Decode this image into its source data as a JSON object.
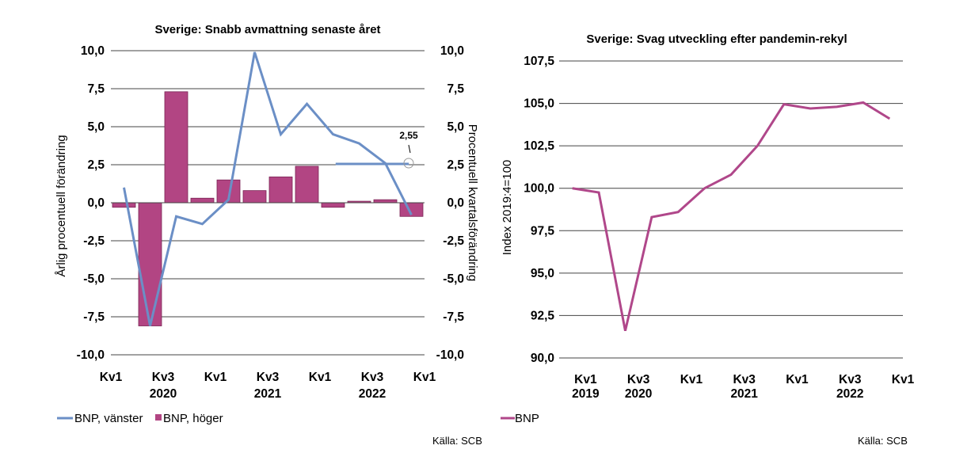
{
  "colors": {
    "line": "#6b8fc6",
    "bar": "#b24583",
    "bar_edge": "#7a2455",
    "grid": "#444444",
    "bnp_line": "#b0478a"
  },
  "chart_data": [
    {
      "type": "bar",
      "title": "Sverige: Snabb avmattning senaste året",
      "ylabel": "Årlig procentuell förändring",
      "ylabel_right": "Procentuell kvartalsförändring",
      "ylim": [
        -10,
        10
      ],
      "yticks": [
        "10,0",
        "7,5",
        "5,0",
        "2,5",
        "0,0",
        "-2,5",
        "-5,0",
        "-7,5",
        "-10,0"
      ],
      "xtick_labels": [
        {
          "q": "Kv1",
          "year": ""
        },
        {
          "q": "Kv3",
          "year": "2020"
        },
        {
          "q": "Kv1",
          "year": ""
        },
        {
          "q": "Kv3",
          "year": "2021"
        },
        {
          "q": "Kv1",
          "year": ""
        },
        {
          "q": "Kv3",
          "year": "2022"
        },
        {
          "q": "Kv1",
          "year": ""
        }
      ],
      "series": [
        {
          "name": "BNP, vänster",
          "kind": "line",
          "axis": "left",
          "values": [
            1.0,
            -8.1,
            -0.9,
            -1.4,
            0.2,
            9.9,
            4.5,
            6.5,
            4.5,
            3.9,
            2.6,
            -0.8
          ]
        },
        {
          "name": "BNP, höger",
          "kind": "bar",
          "axis": "right",
          "values": [
            -0.3,
            -8.1,
            7.3,
            0.3,
            1.5,
            0.8,
            1.7,
            2.4,
            -0.3,
            0.1,
            0.2,
            -0.9
          ]
        },
        {
          "name": "",
          "kind": "hline",
          "x_start": 8.6,
          "x_end": 11.4,
          "value": 2.55
        }
      ],
      "annotation": "2,55",
      "legend": [
        "BNP, vänster",
        "BNP, höger"
      ],
      "legend_position": "bottom-left",
      "source": "Källa: SCB"
    },
    {
      "type": "line",
      "title": "Sverige: Svag utveckling efter pandemin-rekyl",
      "ylabel": "Index 2019:4=100",
      "ylim": [
        90,
        107.5
      ],
      "yticks": [
        "107,5",
        "105,0",
        "102,5",
        "100,0",
        "97,5",
        "95,0",
        "92,5",
        "90,0"
      ],
      "xtick_labels": [
        {
          "q": "Kv1",
          "year": "2019"
        },
        {
          "q": "Kv3",
          "year": "2020"
        },
        {
          "q": "Kv1",
          "year": ""
        },
        {
          "q": "Kv3",
          "year": "2021"
        },
        {
          "q": "Kv1",
          "year": ""
        },
        {
          "q": "Kv3",
          "year": "2022"
        },
        {
          "q": "Kv1",
          "year": ""
        }
      ],
      "series": [
        {
          "name": "BNP",
          "values": [
            100.0,
            99.75,
            91.6,
            98.3,
            98.6,
            100.0,
            100.8,
            102.5,
            104.95,
            104.7,
            104.8,
            105.05,
            104.1
          ]
        }
      ],
      "legend": [
        "BNP"
      ],
      "legend_position": "bottom-left",
      "source": "Källa: SCB"
    }
  ]
}
